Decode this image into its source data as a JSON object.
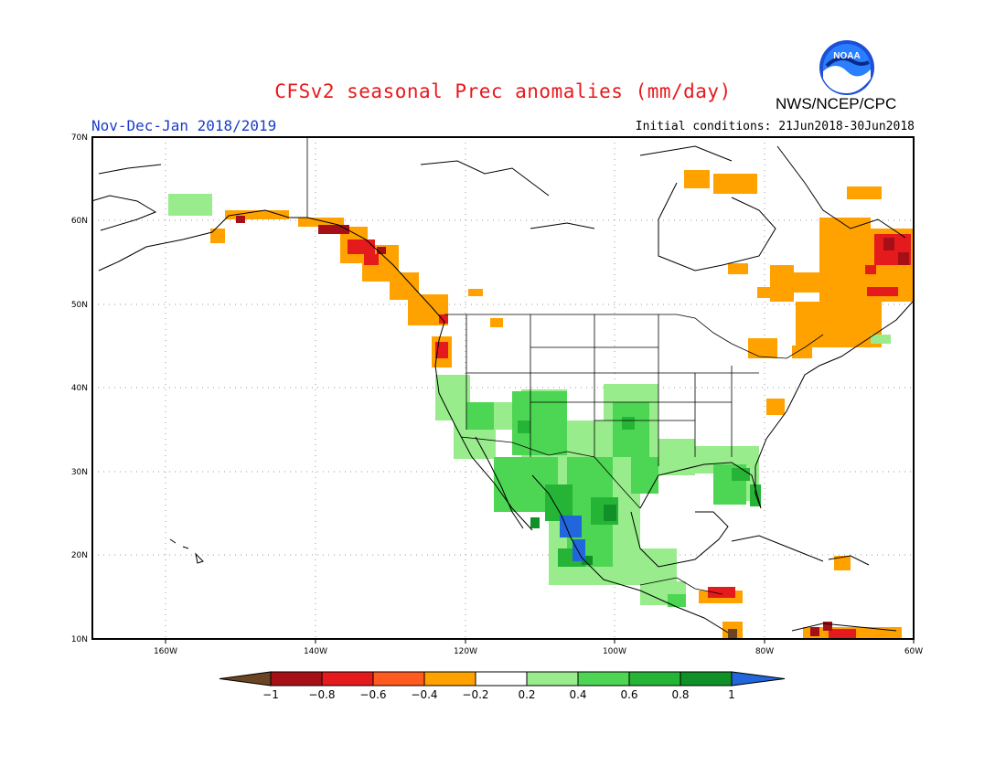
{
  "title": "CFSv2 seasonal Prec anomalies (mm/day)",
  "period": "Nov-Dec-Jan 2018/2019",
  "initial_conditions": "Initial conditions: 21Jun2018-30Jun2018",
  "agency": "NWS/NCEP/CPC",
  "logo_text": "NOAA",
  "map": {
    "lat_labels": [
      "70N",
      "60N",
      "50N",
      "40N",
      "30N",
      "20N",
      "10N"
    ],
    "lon_labels": [
      "160W",
      "140W",
      "120W",
      "100W",
      "80W",
      "60W"
    ]
  },
  "colorbar": {
    "ticks": [
      "−1",
      "−0.8",
      "−0.6",
      "−0.4",
      "−0.2",
      "0.2",
      "0.4",
      "0.6",
      "0.8",
      "1"
    ],
    "colors": [
      "#6b4423",
      "#a50f15",
      "#e41a1c",
      "#ff5a1f",
      "#ffa200",
      "#ffffff",
      "#98ec8c",
      "#4dd653",
      "#26b436",
      "#109128",
      "#2266dd"
    ]
  }
}
